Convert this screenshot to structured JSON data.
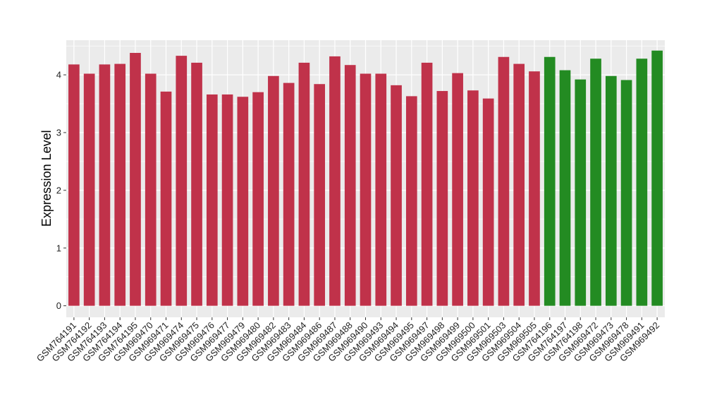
{
  "chart_data": {
    "type": "bar",
    "title": "",
    "xlabel": "",
    "ylabel": "Expression Level",
    "ylim": [
      -0.2,
      4.6
    ],
    "yticks": [
      0,
      1,
      2,
      3,
      4
    ],
    "grid": true,
    "legend": "none",
    "colors": {
      "red_group": "#c0324a",
      "green_group": "#238b22",
      "panel": "#ebebeb",
      "gridline": "#ffffff"
    },
    "categories": [
      "GSM764191",
      "GSM764192",
      "GSM764193",
      "GSM764194",
      "GSM764195",
      "GSM969470",
      "GSM969471",
      "GSM969474",
      "GSM969475",
      "GSM969476",
      "GSM969477",
      "GSM969479",
      "GSM969480",
      "GSM969482",
      "GSM969483",
      "GSM969484",
      "GSM969486",
      "GSM969487",
      "GSM969488",
      "GSM969490",
      "GSM969493",
      "GSM969494",
      "GSM969495",
      "GSM969497",
      "GSM969498",
      "GSM969499",
      "GSM969500",
      "GSM969501",
      "GSM969503",
      "GSM969504",
      "GSM969505",
      "GSM764196",
      "GSM764197",
      "GSM764198",
      "GSM969472",
      "GSM969473",
      "GSM969478",
      "GSM969491",
      "GSM969492"
    ],
    "values": [
      4.18,
      4.02,
      4.18,
      4.19,
      4.38,
      4.02,
      3.71,
      4.33,
      4.21,
      3.66,
      3.66,
      3.62,
      3.7,
      3.98,
      3.86,
      4.21,
      3.84,
      4.32,
      4.17,
      4.02,
      4.02,
      3.82,
      3.63,
      4.21,
      3.72,
      4.03,
      3.73,
      3.59,
      4.31,
      4.19,
      4.06,
      4.31,
      4.08,
      3.92,
      4.28,
      3.98,
      3.91,
      4.28,
      4.42
    ],
    "groups": [
      "red_group",
      "red_group",
      "red_group",
      "red_group",
      "red_group",
      "red_group",
      "red_group",
      "red_group",
      "red_group",
      "red_group",
      "red_group",
      "red_group",
      "red_group",
      "red_group",
      "red_group",
      "red_group",
      "red_group",
      "red_group",
      "red_group",
      "red_group",
      "red_group",
      "red_group",
      "red_group",
      "red_group",
      "red_group",
      "red_group",
      "red_group",
      "red_group",
      "red_group",
      "red_group",
      "red_group",
      "green_group",
      "green_group",
      "green_group",
      "green_group",
      "green_group",
      "green_group",
      "green_group",
      "green_group"
    ]
  }
}
